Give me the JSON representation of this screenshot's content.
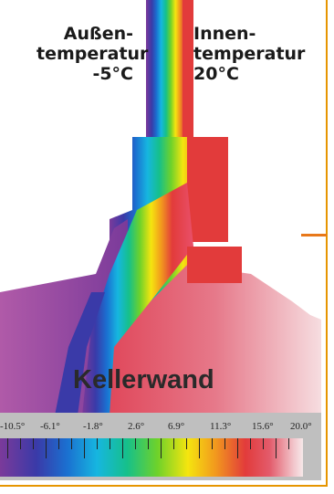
{
  "labels": {
    "outside_line1": "Außen-",
    "outside_line2": "temperatur",
    "outside_line3": "-5°C",
    "inside_line1": "Innen-",
    "inside_line2": "temperatur",
    "inside_line3": "20°C",
    "room": "Kellerwand"
  },
  "scale": {
    "ticks": [
      "-10.5°",
      "-6.1°",
      "-1.8°",
      "2.6°",
      "6.9°",
      "11.3°",
      "15.6°",
      "20.0°"
    ]
  },
  "colors": {
    "frame": "#e69500",
    "marker": "#e8781a"
  }
}
